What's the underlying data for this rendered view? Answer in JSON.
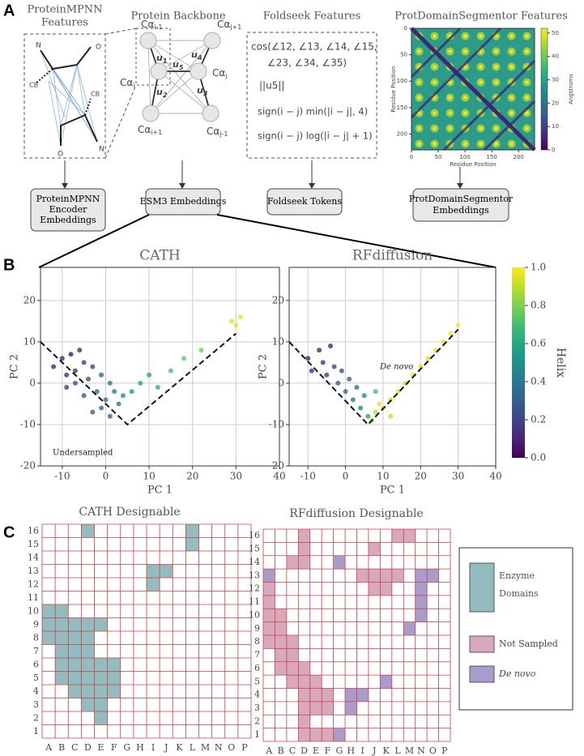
{
  "panel_labels": [
    "A",
    "B",
    "C"
  ],
  "mpnn": {
    "title": [
      "ProteinMPNN",
      "Features"
    ],
    "atoms": [
      "N",
      "O",
      "CB",
      "CB",
      "N",
      "O"
    ]
  },
  "backbone": {
    "title": "Protein Backbone",
    "nodes": [
      {
        "text": "Cα",
        "sub": "i-1"
      },
      {
        "text": "Cα",
        "sub": "i"
      },
      {
        "text": "Cα",
        "sub": "i+1"
      },
      {
        "text": "Cα",
        "sub": "j+1"
      },
      {
        "text": "Cα",
        "sub": "j"
      },
      {
        "text": "Cα",
        "sub": "j-1"
      }
    ],
    "vectors": [
      {
        "text": "u",
        "sub": "1"
      },
      {
        "text": "u",
        "sub": "2"
      },
      {
        "text": "u",
        "sub": "3"
      },
      {
        "text": "u",
        "sub": "4"
      },
      {
        "text": "u",
        "sub": "5"
      }
    ]
  },
  "foldseek": {
    "title": "Foldseek Features",
    "lines": [
      "cos(∠12, ∠13, ∠14, ∠15,",
      "∠23, ∠34, ∠35)",
      "||u5||",
      "sign(i − j) min(|i − j|, 4)",
      "sign(i − j) log(|i − j| + 1)"
    ]
  },
  "boxes": [
    [
      "ProteinMPNN",
      "Encoder",
      "Embeddings"
    ],
    [
      "ESM3 Embeddings"
    ],
    [
      "Foldseek Tokens"
    ],
    [
      "ProtDomainSegmentor",
      "Embeddings"
    ]
  ],
  "chart_data": [
    {
      "type": "heatmap",
      "title": "ProtDomainSegmentor Features",
      "xlabel": "Residue Position",
      "ylabel": "Residue Position",
      "xlim": [
        0,
        230
      ],
      "ylim": [
        0,
        230
      ],
      "xticks": [
        0,
        50,
        100,
        150,
        200
      ],
      "yticks": [
        0,
        50,
        100,
        150,
        200
      ],
      "colorbar": {
        "label": "Angstroms",
        "lim": [
          0,
          52
        ],
        "ticks": [
          0,
          10,
          20,
          30,
          40,
          50
        ]
      }
    },
    {
      "type": "scatter",
      "title": "CATH",
      "xlabel": "PC 1",
      "ylabel": "PC 2",
      "grid": true,
      "xlim": [
        -15,
        40
      ],
      "ylim": [
        -20,
        28
      ],
      "xticks": [
        -10,
        0,
        10,
        20,
        30,
        40
      ],
      "yticks": [
        -20,
        -10,
        0,
        10,
        20
      ],
      "x": [
        -12,
        -10,
        -9,
        -8,
        -7,
        -6,
        -5,
        -4,
        -3,
        -9,
        -7,
        -5,
        -2,
        -1,
        0,
        1,
        2,
        3,
        -3,
        -1,
        1,
        4,
        6,
        8,
        10,
        12,
        15,
        18,
        22,
        29,
        30,
        31
      ],
      "y": [
        4,
        6,
        2,
        7,
        3,
        8,
        5,
        1,
        4,
        -1,
        0,
        -3,
        -2,
        -6,
        -4,
        -8,
        -2,
        -5,
        -7,
        2,
        0,
        -3,
        -2,
        0,
        2,
        -1,
        3,
        6,
        8,
        15,
        14,
        16
      ],
      "values": [
        0.1,
        0.1,
        0.15,
        0.08,
        0.15,
        0.12,
        0.2,
        0.25,
        0.2,
        0.2,
        0.25,
        0.3,
        0.35,
        0.35,
        0.4,
        0.35,
        0.45,
        0.4,
        0.3,
        0.3,
        0.4,
        0.5,
        0.55,
        0.6,
        0.6,
        0.65,
        0.7,
        0.75,
        0.8,
        0.95,
        0.97,
        0.98
      ],
      "guide": {
        "x": [
          -15,
          5,
          30
        ],
        "y": [
          10,
          -10,
          12
        ]
      },
      "annotation": "Undersampled"
    },
    {
      "type": "scatter",
      "title": "RFdiffusion",
      "xlabel": "PC 1",
      "ylabel": "PC 2",
      "grid": true,
      "xlim": [
        -15,
        40
      ],
      "ylim": [
        -20,
        28
      ],
      "xticks": [
        -10,
        0,
        10,
        20,
        30,
        40
      ],
      "yticks": [
        -20,
        -10,
        0,
        10,
        20
      ],
      "x": [
        -10,
        -9,
        -7,
        -6,
        -5,
        -4,
        -3,
        -2,
        -1,
        0,
        1,
        2,
        3,
        4,
        5,
        6,
        7,
        8,
        9,
        10,
        12,
        14,
        16,
        18,
        20,
        22,
        24,
        26,
        28,
        30,
        8,
        12
      ],
      "y": [
        6,
        3,
        8,
        5,
        2,
        9,
        4,
        0,
        3,
        -2,
        1,
        -4,
        -1,
        -6,
        -3,
        -8,
        -9,
        -7,
        -5,
        -6,
        -4,
        -2,
        0,
        2,
        4,
        6,
        8,
        10,
        12,
        14,
        -2,
        -8
      ],
      "values": [
        0.1,
        0.15,
        0.1,
        0.15,
        0.2,
        0.1,
        0.2,
        0.3,
        0.25,
        0.35,
        0.3,
        0.4,
        0.4,
        0.5,
        0.5,
        0.6,
        0.9,
        0.9,
        0.95,
        0.95,
        0.95,
        0.95,
        0.95,
        0.95,
        0.95,
        0.95,
        0.97,
        0.97,
        0.98,
        0.98,
        0.7,
        0.9
      ],
      "guide": {
        "x": [
          -15,
          6,
          30
        ],
        "y": [
          10,
          -10,
          13
        ]
      },
      "annotation": "De novo"
    }
  ],
  "helix_colorbar": {
    "label": "Helix",
    "lim": [
      0,
      1
    ],
    "ticks": [
      {
        "value": 0,
        "label": "0.0"
      },
      0.2,
      0.4,
      0.6,
      0.8,
      {
        "value": 1,
        "label": "1.0"
      }
    ]
  },
  "grids": [
    {
      "title": "CATH Designable",
      "columns": [
        "A",
        "B",
        "C",
        "D",
        "E",
        "F",
        "G",
        "H",
        "I",
        "J",
        "K",
        "L",
        "M",
        "N",
        "O",
        "P"
      ],
      "rows": [
        1,
        2,
        3,
        4,
        5,
        6,
        7,
        8,
        9,
        10,
        11,
        12,
        13,
        14,
        15,
        16
      ],
      "enzyme": [
        [
          "D",
          16
        ],
        [
          "L",
          16
        ],
        [
          "L",
          15
        ],
        [
          "I",
          13
        ],
        [
          "J",
          13
        ],
        [
          "I",
          12
        ],
        [
          "A",
          10
        ],
        [
          "B",
          10
        ],
        [
          "A",
          9
        ],
        [
          "B",
          9
        ],
        [
          "C",
          9
        ],
        [
          "D",
          9
        ],
        [
          "E",
          9
        ],
        [
          "A",
          8
        ],
        [
          "B",
          8
        ],
        [
          "C",
          8
        ],
        [
          "D",
          8
        ],
        [
          "B",
          7
        ],
        [
          "C",
          7
        ],
        [
          "D",
          7
        ],
        [
          "B",
          6
        ],
        [
          "C",
          6
        ],
        [
          "D",
          6
        ],
        [
          "E",
          6
        ],
        [
          "F",
          6
        ],
        [
          "B",
          5
        ],
        [
          "C",
          5
        ],
        [
          "D",
          5
        ],
        [
          "E",
          5
        ],
        [
          "F",
          5
        ],
        [
          "C",
          4
        ],
        [
          "D",
          4
        ],
        [
          "E",
          4
        ],
        [
          "F",
          4
        ],
        [
          "D",
          3
        ],
        [
          "E",
          3
        ],
        [
          "E",
          2
        ]
      ],
      "not_sampled": [],
      "de_novo": []
    },
    {
      "title": "RFdiffusion Designable",
      "columns": [
        "A",
        "B",
        "C",
        "D",
        "E",
        "F",
        "G",
        "H",
        "I",
        "J",
        "K",
        "L",
        "M",
        "N",
        "O",
        "P"
      ],
      "rows": [
        1,
        2,
        3,
        4,
        5,
        6,
        7,
        8,
        9,
        10,
        11,
        12,
        13,
        14,
        15,
        16
      ],
      "enzyme": [],
      "not_sampled": [
        [
          "D",
          16
        ],
        [
          "L",
          16
        ],
        [
          "M",
          16
        ],
        [
          "D",
          15
        ],
        [
          "J",
          15
        ],
        [
          "C",
          14
        ],
        [
          "D",
          14
        ],
        [
          "I",
          13
        ],
        [
          "J",
          13
        ],
        [
          "K",
          13
        ],
        [
          "L",
          13
        ],
        [
          "A",
          12
        ],
        [
          "J",
          12
        ],
        [
          "K",
          12
        ],
        [
          "A",
          11
        ],
        [
          "A",
          10
        ],
        [
          "B",
          10
        ],
        [
          "A",
          9
        ],
        [
          "B",
          9
        ],
        [
          "A",
          8
        ],
        [
          "B",
          8
        ],
        [
          "C",
          8
        ],
        [
          "B",
          7
        ],
        [
          "C",
          7
        ],
        [
          "B",
          6
        ],
        [
          "C",
          6
        ],
        [
          "D",
          6
        ],
        [
          "C",
          5
        ],
        [
          "D",
          5
        ],
        [
          "E",
          5
        ],
        [
          "D",
          4
        ],
        [
          "E",
          4
        ],
        [
          "F",
          4
        ],
        [
          "D",
          3
        ],
        [
          "E",
          3
        ],
        [
          "F",
          3
        ],
        [
          "D",
          2
        ],
        [
          "D",
          1
        ],
        [
          "E",
          1
        ],
        [
          "F",
          1
        ]
      ],
      "de_novo": [
        [
          "G",
          14
        ],
        [
          "A",
          13
        ],
        [
          "N",
          13
        ],
        [
          "O",
          13
        ],
        [
          "N",
          12
        ],
        [
          "N",
          11
        ],
        [
          "N",
          10
        ],
        [
          "M",
          9
        ],
        [
          "K",
          5
        ],
        [
          "H",
          4
        ],
        [
          "I",
          4
        ],
        [
          "H",
          3
        ],
        [
          "G",
          1
        ]
      ]
    }
  ],
  "legend": [
    "Enzyme Domains",
    "Not Sampled",
    "De novo"
  ]
}
